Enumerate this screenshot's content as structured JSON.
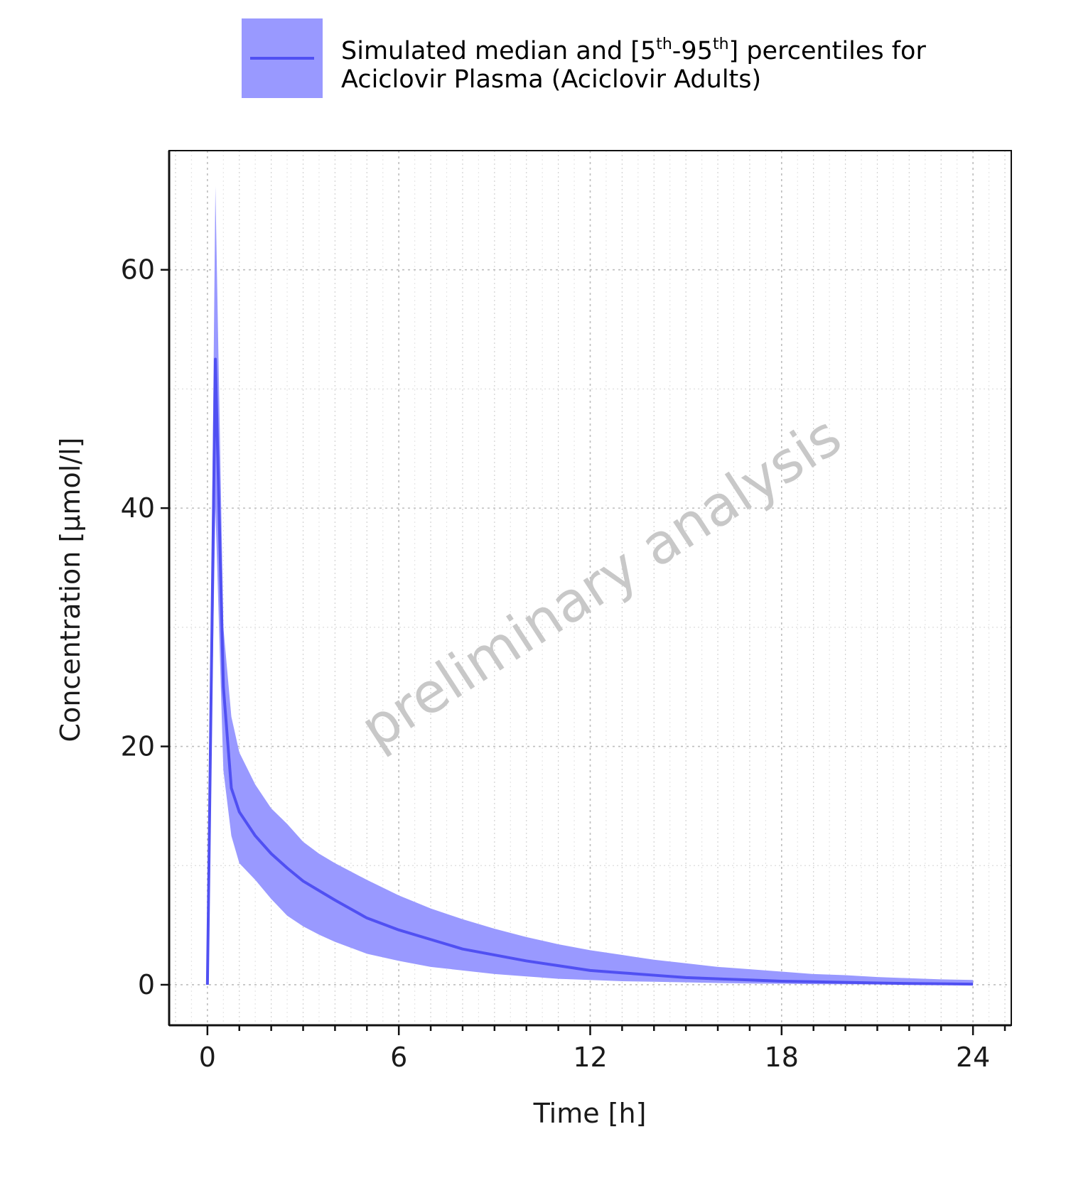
{
  "chart_data": {
    "type": "area",
    "title": "",
    "legend": {
      "position": "top",
      "line1_prefix": "Simulated median and [5",
      "sup1": "th",
      "line1_mid": "-95",
      "sup2": "th",
      "line1_suffix": "] percentiles for",
      "line2": "Aciclovir Plasma (Aciclovir Adults)"
    },
    "xlabel": "Time [h]",
    "ylabel": "Concentration [µmol/l]",
    "xlim": [
      -1.2,
      25.2
    ],
    "ylim": [
      -3.4,
      70.0
    ],
    "xticks": [
      0,
      6,
      12,
      18,
      24
    ],
    "xtick_labels": [
      "0",
      "6",
      "12",
      "18",
      "24"
    ],
    "yticks": [
      0,
      20,
      40,
      60
    ],
    "ytick_labels": [
      "0",
      "20",
      "40",
      "60"
    ],
    "minor_x_step": 1,
    "minor_y_step": 10,
    "grid": true,
    "watermark": "preliminary analysis",
    "colors": {
      "median": "#5050f2",
      "band": "#9999ff"
    },
    "series": [
      {
        "x": [
          0,
          0.25,
          0.5,
          0.75,
          1,
          1.5,
          2,
          2.5,
          3,
          3.5,
          4,
          5,
          6,
          7,
          8,
          9,
          10,
          11,
          12,
          13,
          14,
          15,
          16,
          17,
          18,
          19,
          20,
          21,
          22,
          23,
          24
        ],
        "median": [
          0,
          52.5,
          25,
          16.5,
          14.5,
          12.5,
          11,
          9.8,
          8.7,
          7.9,
          7.1,
          5.6,
          4.6,
          3.8,
          3.0,
          2.5,
          2.0,
          1.6,
          1.2,
          1.0,
          0.8,
          0.6,
          0.5,
          0.4,
          0.3,
          0.25,
          0.2,
          0.15,
          0.1,
          0.08,
          0.05
        ],
        "p95": [
          0,
          67,
          30,
          22.5,
          19.5,
          16.8,
          14.8,
          13.5,
          12.0,
          11.0,
          10.2,
          8.8,
          7.5,
          6.4,
          5.5,
          4.7,
          4.0,
          3.4,
          2.9,
          2.5,
          2.1,
          1.8,
          1.5,
          1.3,
          1.1,
          0.9,
          0.8,
          0.65,
          0.55,
          0.45,
          0.4
        ],
        "p05": [
          0,
          40,
          18,
          12.5,
          10.2,
          8.8,
          7.2,
          5.8,
          4.9,
          4.2,
          3.6,
          2.6,
          2.0,
          1.5,
          1.2,
          0.9,
          0.7,
          0.5,
          0.4,
          0.3,
          0.25,
          0.2,
          0.15,
          0.1,
          0.08,
          0.05,
          0.04,
          0.03,
          0.02,
          0.02,
          0.01
        ]
      }
    ]
  }
}
